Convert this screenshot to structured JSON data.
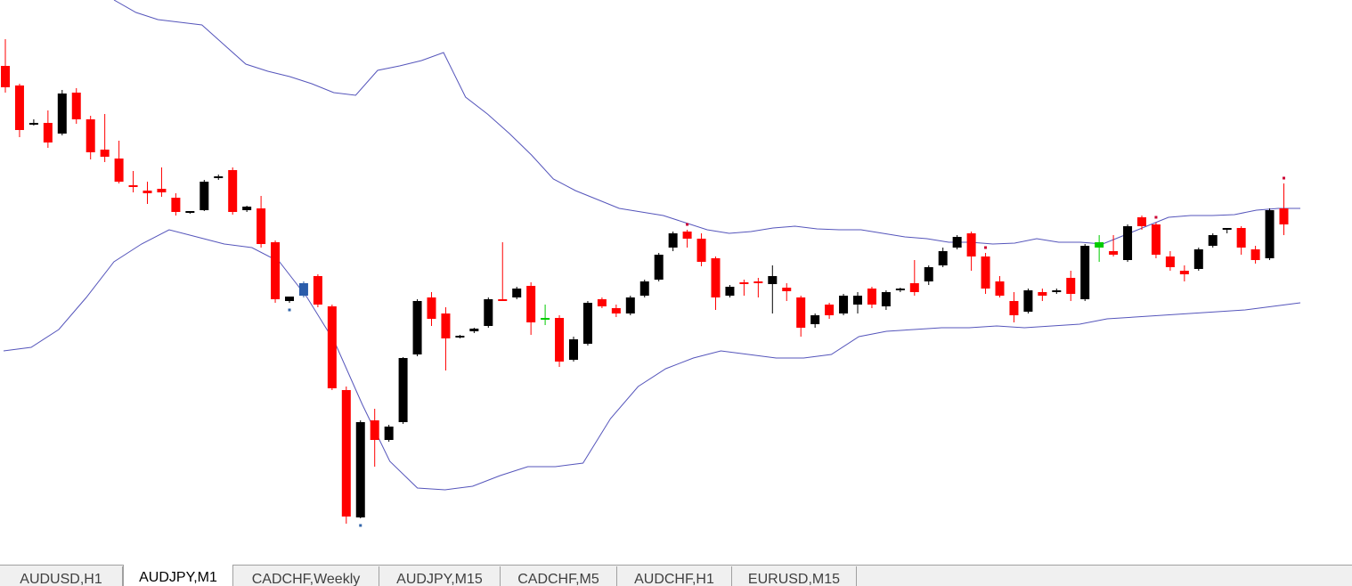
{
  "tabs": [
    {
      "label": "AUDUSD,H1",
      "active": false
    },
    {
      "label": "AUDJPY,M1",
      "active": true
    },
    {
      "label": "CADCHF,Weekly",
      "active": false
    },
    {
      "label": "AUDJPY,M15",
      "active": false
    },
    {
      "label": "CADCHF,M5",
      "active": false
    },
    {
      "label": "AUDCHF,H1",
      "active": false
    },
    {
      "label": "EURUSD,M15",
      "active": false
    }
  ],
  "colors": {
    "bull_candle": "#000000",
    "bear_candle": "#ff0000",
    "doji_green": "#00cc00",
    "doji_blue": "#2a5caa",
    "bollinger_band": "#5555bb",
    "signal_dot_red": "#cc0033",
    "signal_dot_blue": "#3366aa",
    "background": "#ffffff"
  },
  "chart_data": {
    "type": "candlestick",
    "indicator": "bollinger_bands",
    "ylim": [
      0,
      634
    ],
    "note_units": "price axis not printed; values are in relative chart units (higher = higher price)",
    "candles": [
      {
        "o": 560,
        "h": 590,
        "l": 530,
        "c": 536,
        "color": "bear"
      },
      {
        "o": 538,
        "h": 540,
        "l": 480,
        "c": 488,
        "color": "bear"
      },
      {
        "o": 495,
        "h": 500,
        "l": 493,
        "c": 496,
        "color": "bull"
      },
      {
        "o": 496,
        "h": 510,
        "l": 468,
        "c": 474,
        "color": "bear"
      },
      {
        "o": 484,
        "h": 533,
        "l": 482,
        "c": 529,
        "color": "bull"
      },
      {
        "o": 530,
        "h": 535,
        "l": 495,
        "c": 500,
        "color": "bear"
      },
      {
        "o": 500,
        "h": 504,
        "l": 455,
        "c": 463,
        "color": "bear"
      },
      {
        "o": 466,
        "h": 506,
        "l": 452,
        "c": 458,
        "color": "bear"
      },
      {
        "o": 456,
        "h": 476,
        "l": 428,
        "c": 430,
        "color": "bear"
      },
      {
        "o": 426,
        "h": 442,
        "l": 418,
        "c": 424,
        "color": "bear"
      },
      {
        "o": 420,
        "h": 430,
        "l": 405,
        "c": 417,
        "color": "bear"
      },
      {
        "o": 422,
        "h": 446,
        "l": 413,
        "c": 418,
        "color": "bear"
      },
      {
        "o": 412,
        "h": 417,
        "l": 392,
        "c": 396,
        "color": "bear"
      },
      {
        "o": 396,
        "h": 397,
        "l": 394,
        "c": 397,
        "color": "bull"
      },
      {
        "o": 398,
        "h": 432,
        "l": 397,
        "c": 430,
        "color": "bull"
      },
      {
        "o": 434,
        "h": 438,
        "l": 432,
        "c": 436,
        "color": "bull"
      },
      {
        "o": 443,
        "h": 446,
        "l": 393,
        "c": 396,
        "color": "bear"
      },
      {
        "o": 402,
        "h": 403,
        "l": 396,
        "c": 398,
        "color": "bull"
      },
      {
        "o": 400,
        "h": 414,
        "l": 356,
        "c": 360,
        "color": "bear"
      },
      {
        "o": 362,
        "h": 364,
        "l": 294,
        "c": 298,
        "color": "bear"
      },
      {
        "o": 296,
        "h": 300,
        "l": 294,
        "c": 301,
        "color": "bull"
      },
      {
        "o": 302,
        "h": 318,
        "l": 300,
        "c": 316,
        "color": "doji_blue"
      },
      {
        "o": 324,
        "h": 326,
        "l": 289,
        "c": 292,
        "color": "bear"
      },
      {
        "o": 290,
        "h": 292,
        "l": 196,
        "c": 198,
        "color": "bear"
      },
      {
        "o": 196,
        "h": 200,
        "l": 46,
        "c": 54,
        "color": "bear"
      },
      {
        "o": 53,
        "h": 162,
        "l": 52,
        "c": 160,
        "color": "bull"
      },
      {
        "o": 162,
        "h": 175,
        "l": 110,
        "c": 140,
        "color": "bear"
      },
      {
        "o": 140,
        "h": 157,
        "l": 138,
        "c": 155,
        "color": "bull"
      },
      {
        "o": 160,
        "h": 233,
        "l": 158,
        "c": 232,
        "color": "bull"
      },
      {
        "o": 236,
        "h": 298,
        "l": 234,
        "c": 296,
        "color": "bull"
      },
      {
        "o": 300,
        "h": 306,
        "l": 268,
        "c": 276,
        "color": "bear"
      },
      {
        "o": 282,
        "h": 289,
        "l": 218,
        "c": 254,
        "color": "bear"
      },
      {
        "o": 256,
        "h": 258,
        "l": 254,
        "c": 257,
        "color": "bull"
      },
      {
        "o": 262,
        "h": 266,
        "l": 260,
        "c": 265,
        "color": "bull"
      },
      {
        "o": 268,
        "h": 300,
        "l": 266,
        "c": 298,
        "color": "bull"
      },
      {
        "o": 297,
        "h": 362,
        "l": 296,
        "c": 298,
        "color": "bear"
      },
      {
        "o": 300,
        "h": 312,
        "l": 298,
        "c": 310,
        "color": "bull"
      },
      {
        "o": 313,
        "h": 317,
        "l": 258,
        "c": 272,
        "color": "bear"
      },
      {
        "o": 276,
        "h": 292,
        "l": 269,
        "c": 277,
        "color": "doji_green"
      },
      {
        "o": 277,
        "h": 280,
        "l": 222,
        "c": 228,
        "color": "bear"
      },
      {
        "o": 230,
        "h": 256,
        "l": 228,
        "c": 253,
        "color": "bull"
      },
      {
        "o": 248,
        "h": 296,
        "l": 246,
        "c": 294,
        "color": "bull"
      },
      {
        "o": 298,
        "h": 300,
        "l": 288,
        "c": 290,
        "color": "bear"
      },
      {
        "o": 288,
        "h": 292,
        "l": 278,
        "c": 282,
        "color": "bear"
      },
      {
        "o": 282,
        "h": 302,
        "l": 280,
        "c": 300,
        "color": "bull"
      },
      {
        "o": 302,
        "h": 320,
        "l": 300,
        "c": 318,
        "color": "bull"
      },
      {
        "o": 320,
        "h": 350,
        "l": 318,
        "c": 348,
        "color": "bull"
      },
      {
        "o": 356,
        "h": 374,
        "l": 352,
        "c": 372,
        "color": "bull"
      },
      {
        "o": 374,
        "h": 376,
        "l": 356,
        "c": 366,
        "color": "bear"
      },
      {
        "o": 366,
        "h": 372,
        "l": 335,
        "c": 340,
        "color": "bear"
      },
      {
        "o": 344,
        "h": 346,
        "l": 286,
        "c": 300,
        "color": "bear"
      },
      {
        "o": 302,
        "h": 314,
        "l": 300,
        "c": 312,
        "color": "bull"
      },
      {
        "o": 316,
        "h": 320,
        "l": 302,
        "c": 317,
        "color": "bear"
      },
      {
        "o": 318,
        "h": 322,
        "l": 300,
        "c": 318,
        "color": "bear"
      },
      {
        "o": 315,
        "h": 336,
        "l": 282,
        "c": 324,
        "color": "bull"
      },
      {
        "o": 311,
        "h": 316,
        "l": 296,
        "c": 307,
        "color": "bear"
      },
      {
        "o": 300,
        "h": 302,
        "l": 256,
        "c": 266,
        "color": "bear"
      },
      {
        "o": 270,
        "h": 282,
        "l": 266,
        "c": 280,
        "color": "bull"
      },
      {
        "o": 292,
        "h": 294,
        "l": 276,
        "c": 280,
        "color": "bear"
      },
      {
        "o": 282,
        "h": 304,
        "l": 280,
        "c": 302,
        "color": "bull"
      },
      {
        "o": 302,
        "h": 306,
        "l": 282,
        "c": 292,
        "color": "bull"
      },
      {
        "o": 310,
        "h": 312,
        "l": 288,
        "c": 292,
        "color": "bear"
      },
      {
        "o": 290,
        "h": 308,
        "l": 286,
        "c": 306,
        "color": "bull"
      },
      {
        "o": 310,
        "h": 311,
        "l": 306,
        "c": 309,
        "color": "bull"
      },
      {
        "o": 316,
        "h": 342,
        "l": 302,
        "c": 306,
        "color": "bear"
      },
      {
        "o": 318,
        "h": 336,
        "l": 314,
        "c": 334,
        "color": "bull"
      },
      {
        "o": 336,
        "h": 356,
        "l": 334,
        "c": 352,
        "color": "bull"
      },
      {
        "o": 356,
        "h": 370,
        "l": 354,
        "c": 368,
        "color": "bull"
      },
      {
        "o": 372,
        "h": 374,
        "l": 330,
        "c": 346,
        "color": "bear"
      },
      {
        "o": 346,
        "h": 350,
        "l": 304,
        "c": 310,
        "color": "bear"
      },
      {
        "o": 318,
        "h": 324,
        "l": 300,
        "c": 302,
        "color": "bear"
      },
      {
        "o": 296,
        "h": 306,
        "l": 272,
        "c": 280,
        "color": "bear"
      },
      {
        "o": 284,
        "h": 310,
        "l": 282,
        "c": 308,
        "color": "bull"
      },
      {
        "o": 306,
        "h": 310,
        "l": 296,
        "c": 302,
        "color": "bear"
      },
      {
        "o": 306,
        "h": 310,
        "l": 304,
        "c": 308,
        "color": "bull"
      },
      {
        "o": 322,
        "h": 330,
        "l": 296,
        "c": 304,
        "color": "bear"
      },
      {
        "o": 298,
        "h": 360,
        "l": 296,
        "c": 358,
        "color": "bull"
      },
      {
        "o": 356,
        "h": 370,
        "l": 340,
        "c": 362,
        "color": "doji_green"
      },
      {
        "o": 352,
        "h": 370,
        "l": 346,
        "c": 348,
        "color": "bear"
      },
      {
        "o": 342,
        "h": 382,
        "l": 340,
        "c": 380,
        "color": "bull"
      },
      {
        "o": 390,
        "h": 392,
        "l": 376,
        "c": 380,
        "color": "bear"
      },
      {
        "o": 382,
        "h": 384,
        "l": 344,
        "c": 348,
        "color": "bear"
      },
      {
        "o": 346,
        "h": 352,
        "l": 330,
        "c": 334,
        "color": "bear"
      },
      {
        "o": 330,
        "h": 336,
        "l": 318,
        "c": 326,
        "color": "bear"
      },
      {
        "o": 332,
        "h": 356,
        "l": 330,
        "c": 354,
        "color": "bull"
      },
      {
        "o": 358,
        "h": 372,
        "l": 356,
        "c": 370,
        "color": "bull"
      },
      {
        "o": 376,
        "h": 378,
        "l": 372,
        "c": 378,
        "color": "bull"
      },
      {
        "o": 378,
        "h": 380,
        "l": 348,
        "c": 356,
        "color": "bear"
      },
      {
        "o": 354,
        "h": 358,
        "l": 338,
        "c": 342,
        "color": "bear"
      },
      {
        "o": 344,
        "h": 400,
        "l": 342,
        "c": 398,
        "color": "bull"
      },
      {
        "o": 400,
        "h": 428,
        "l": 370,
        "c": 382,
        "color": "bear"
      }
    ],
    "upper_band": [
      634,
      620,
      612,
      609,
      606,
      584,
      562,
      554,
      548,
      540,
      530,
      527,
      555,
      560,
      566,
      575,
      525,
      506,
      484,
      460,
      433,
      420,
      410,
      400,
      396,
      392,
      384,
      376,
      372,
      374,
      378,
      380,
      377,
      376,
      376,
      372,
      368,
      366,
      362,
      362,
      360,
      361,
      366,
      362,
      362,
      360,
      370,
      380,
      390,
      392,
      392,
      393,
      398,
      400,
      400
    ],
    "lower_band": [
      240,
      244,
      264,
      300,
      340,
      360,
      376,
      368,
      360,
      356,
      340,
      300,
      250,
      180,
      116,
      86,
      84,
      88,
      100,
      110,
      110,
      114,
      164,
      200,
      220,
      232,
      240,
      236,
      232,
      232,
      236,
      256,
      262,
      264,
      266,
      266,
      268,
      266,
      268,
      270,
      276,
      278,
      280,
      282,
      284,
      286,
      290,
      294
    ],
    "signal_dots": [
      {
        "candle": 20,
        "side": "below",
        "color": "blue"
      },
      {
        "candle": 25,
        "side": "below",
        "color": "blue"
      },
      {
        "candle": 48,
        "side": "above",
        "color": "red"
      },
      {
        "candle": 69,
        "side": "above",
        "color": "red"
      },
      {
        "candle": 81,
        "side": "above",
        "color": "red"
      },
      {
        "candle": 90,
        "side": "above",
        "color": "red"
      }
    ]
  }
}
